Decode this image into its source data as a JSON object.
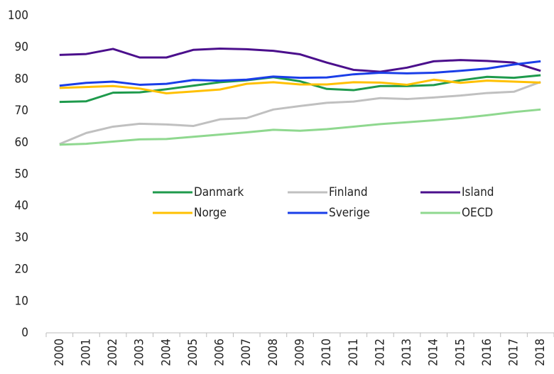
{
  "chart_data": {
    "type": "line",
    "categories": [
      "2000",
      "2001",
      "2002",
      "2003",
      "2004",
      "2005",
      "2006",
      "2007",
      "2008",
      "2009",
      "2010",
      "2011",
      "2012",
      "2013",
      "2014",
      "2015",
      "2016",
      "2017",
      "2018"
    ],
    "series": [
      {
        "name": "Danmark",
        "color": "#1e9a4c",
        "values": [
          72.8,
          73,
          75.7,
          75.8,
          76.8,
          77.9,
          79,
          79.6,
          80.6,
          79.3,
          76.9,
          76.5,
          77.8,
          77.8,
          78.1,
          79.6,
          80.7,
          80.4,
          81.2
        ]
      },
      {
        "name": "Finland",
        "color": "#c0c0c0",
        "values": [
          59.5,
          63,
          65,
          65.9,
          65.7,
          65.2,
          67.3,
          67.7,
          70.4,
          71.5,
          72.5,
          72.9,
          74,
          73.7,
          74.2,
          74.8,
          75.6,
          76,
          79.1
        ]
      },
      {
        "name": "Island",
        "color": "#4b0f8c",
        "values": [
          87.6,
          87.9,
          89.5,
          86.8,
          86.8,
          89.2,
          89.6,
          89.4,
          88.9,
          87.8,
          85.2,
          82.9,
          82.3,
          83.6,
          85.6,
          86,
          85.7,
          85.2,
          82.6
        ]
      },
      {
        "name": "Norge",
        "color": "#ffc000",
        "values": [
          77.2,
          77.5,
          77.8,
          77,
          75.5,
          76.1,
          76.7,
          78.5,
          79,
          78.3,
          78.3,
          79,
          78.9,
          78.2,
          79.8,
          78.8,
          79.5,
          79.2,
          78.9
        ]
      },
      {
        "name": "Sverige",
        "color": "#1a3ee8",
        "values": [
          77.9,
          78.8,
          79.2,
          78.2,
          78.5,
          79.7,
          79.5,
          79.8,
          80.8,
          80.4,
          80.5,
          81.5,
          82,
          81.8,
          82,
          82.6,
          83.3,
          84.6,
          85.6
        ]
      },
      {
        "name": "OECD",
        "color": "#8fd88f",
        "values": [
          59.3,
          59.6,
          60.3,
          61,
          61.1,
          61.8,
          62.5,
          63.2,
          64,
          63.7,
          64.2,
          65,
          65.8,
          66.4,
          67,
          67.7,
          68.6,
          69.6,
          70.4
        ]
      }
    ],
    "ylim": [
      0,
      100
    ],
    "yticks": [
      0,
      10,
      20,
      30,
      40,
      50,
      60,
      70,
      80,
      90,
      100
    ],
    "grid": false,
    "legend": "center"
  }
}
